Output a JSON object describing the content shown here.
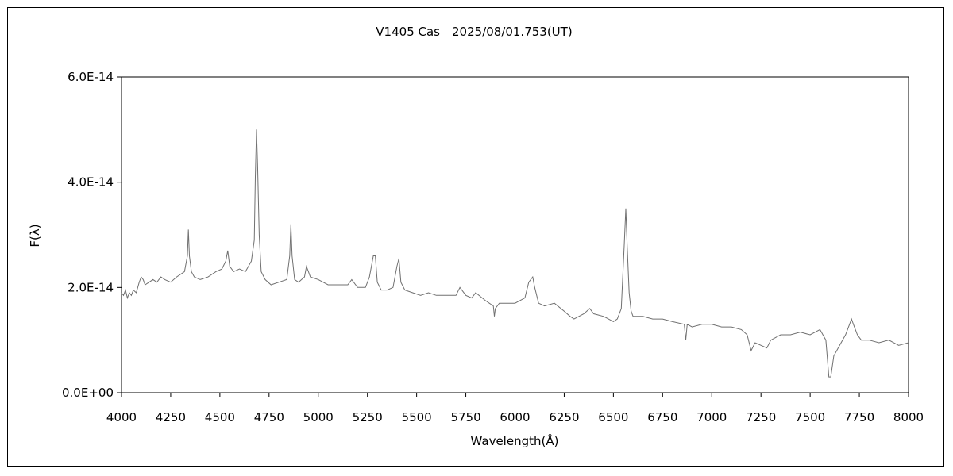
{
  "chart_data": {
    "type": "line",
    "title": "V1405 Cas　2025/08/01.753(UT)",
    "xlabel": "Wavelength(Å)",
    "ylabel": "F(λ)",
    "xlim": [
      4000,
      8000
    ],
    "ylim": [
      0,
      6e-14
    ],
    "xticks": [
      4000,
      4250,
      4500,
      4750,
      5000,
      5250,
      5500,
      5750,
      6000,
      6250,
      6500,
      6750,
      7000,
      7250,
      7500,
      7750,
      8000
    ],
    "xtick_labels": [
      "4000",
      "4250",
      "4500",
      "4750",
      "5000",
      "5250",
      "5500",
      "5750",
      "6000",
      "6250",
      "6500",
      "6750",
      "7000",
      "7250",
      "7500",
      "7750",
      "8000"
    ],
    "yticks": [
      0,
      2e-14,
      4e-14,
      6e-14
    ],
    "ytick_labels": [
      "0.0E+00",
      "2.0E-14",
      "4.0E-14",
      "6.0E-14"
    ],
    "grid": false,
    "legend": "none",
    "line_color": "#707070",
    "series": [
      {
        "x": [
          4000,
          4010,
          4020,
          4030,
          4040,
          4050,
          4060,
          4075,
          4090,
          4100,
          4110,
          4120,
          4140,
          4160,
          4180,
          4200,
          4220,
          4250,
          4280,
          4300,
          4320,
          4335,
          4340,
          4345,
          4355,
          4370,
          4400,
          4440,
          4480,
          4510,
          4530,
          4540,
          4550,
          4570,
          4600,
          4630,
          4660,
          4675,
          4680,
          4686,
          4692,
          4700,
          4710,
          4730,
          4760,
          4800,
          4840,
          4855,
          4861,
          4867,
          4880,
          4900,
          4930,
          4940,
          4950,
          4960,
          5000,
          5050,
          5100,
          5150,
          5170,
          5200,
          5240,
          5260,
          5280,
          5290,
          5300,
          5320,
          5350,
          5380,
          5400,
          5410,
          5420,
          5440,
          5480,
          5520,
          5560,
          5600,
          5650,
          5700,
          5720,
          5750,
          5780,
          5800,
          5850,
          5890,
          5895,
          5900,
          5920,
          6000,
          6050,
          6070,
          6090,
          6100,
          6120,
          6150,
          6200,
          6250,
          6280,
          6300,
          6350,
          6380,
          6400,
          6450,
          6500,
          6520,
          6540,
          6555,
          6563,
          6570,
          6580,
          6590,
          6600,
          6650,
          6700,
          6750,
          6800,
          6860,
          6868,
          6875,
          6900,
          6950,
          7000,
          7050,
          7100,
          7150,
          7180,
          7200,
          7220,
          7250,
          7280,
          7300,
          7350,
          7400,
          7450,
          7500,
          7550,
          7580,
          7595,
          7605,
          7620,
          7650,
          7680,
          7700,
          7710,
          7720,
          7740,
          7760,
          7800,
          7850,
          7900,
          7950,
          8000
        ],
        "y": [
          1.9e-14,
          1.85e-14,
          1.95e-14,
          1.8e-14,
          1.9e-14,
          1.85e-14,
          1.95e-14,
          1.9e-14,
          2.1e-14,
          2.2e-14,
          2.15e-14,
          2.05e-14,
          2.1e-14,
          2.15e-14,
          2.1e-14,
          2.2e-14,
          2.15e-14,
          2.1e-14,
          2.2e-14,
          2.25e-14,
          2.3e-14,
          2.6e-14,
          3.1e-14,
          2.6e-14,
          2.3e-14,
          2.2e-14,
          2.15e-14,
          2.2e-14,
          2.3e-14,
          2.35e-14,
          2.5e-14,
          2.7e-14,
          2.4e-14,
          2.3e-14,
          2.35e-14,
          2.3e-14,
          2.5e-14,
          2.9e-14,
          4.1e-14,
          5e-14,
          4.3e-14,
          3e-14,
          2.3e-14,
          2.15e-14,
          2.05e-14,
          2.1e-14,
          2.15e-14,
          2.6e-14,
          3.2e-14,
          2.6e-14,
          2.15e-14,
          2.1e-14,
          2.2e-14,
          2.4e-14,
          2.3e-14,
          2.2e-14,
          2.15e-14,
          2.05e-14,
          2.05e-14,
          2.05e-14,
          2.15e-14,
          2e-14,
          2e-14,
          2.2e-14,
          2.6e-14,
          2.6e-14,
          2.1e-14,
          1.95e-14,
          1.95e-14,
          2e-14,
          2.4e-14,
          2.55e-14,
          2.1e-14,
          1.95e-14,
          1.9e-14,
          1.85e-14,
          1.9e-14,
          1.85e-14,
          1.85e-14,
          1.85e-14,
          2e-14,
          1.85e-14,
          1.8e-14,
          1.9e-14,
          1.75e-14,
          1.65e-14,
          1.45e-14,
          1.6e-14,
          1.7e-14,
          1.7e-14,
          1.8e-14,
          2.1e-14,
          2.2e-14,
          2e-14,
          1.7e-14,
          1.65e-14,
          1.7e-14,
          1.55e-14,
          1.45e-14,
          1.4e-14,
          1.5e-14,
          1.6e-14,
          1.5e-14,
          1.45e-14,
          1.35e-14,
          1.4e-14,
          1.6e-14,
          2.8e-14,
          3.5e-14,
          2.8e-14,
          1.9e-14,
          1.55e-14,
          1.45e-14,
          1.45e-14,
          1.4e-14,
          1.4e-14,
          1.35e-14,
          1.3e-14,
          1e-14,
          1.3e-14,
          1.25e-14,
          1.3e-14,
          1.3e-14,
          1.25e-14,
          1.25e-14,
          1.2e-14,
          1.1e-14,
          8e-15,
          9.5e-15,
          9e-15,
          8.5e-15,
          1e-14,
          1.1e-14,
          1.1e-14,
          1.15e-14,
          1.1e-14,
          1.2e-14,
          1e-14,
          3e-15,
          3e-15,
          7e-15,
          9e-15,
          1.1e-14,
          1.3e-14,
          1.4e-14,
          1.3e-14,
          1.1e-14,
          1e-14,
          1e-14,
          9.5e-15,
          1e-14,
          9e-15,
          9.5e-15
        ]
      }
    ]
  }
}
